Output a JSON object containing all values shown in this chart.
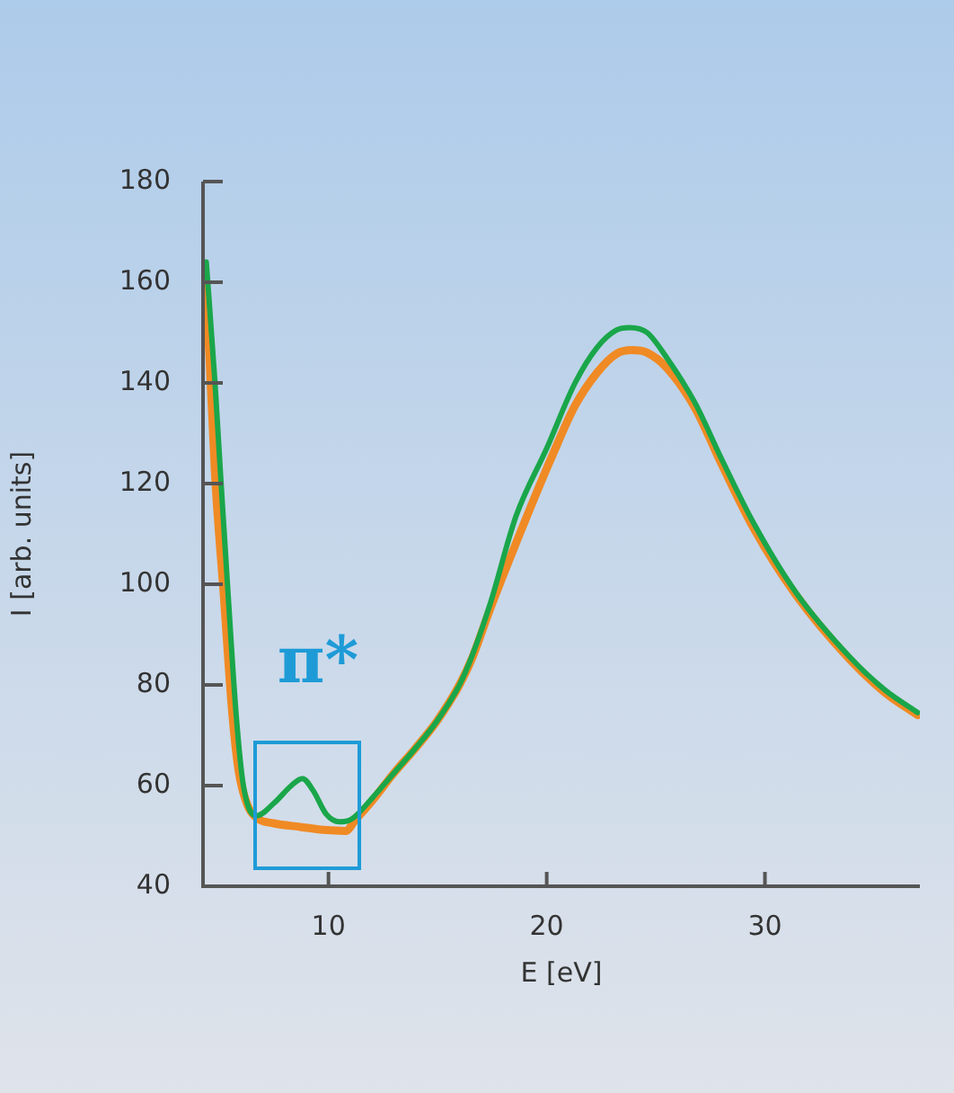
{
  "chart_data": {
    "type": "line",
    "xlabel": "E [eV]",
    "ylabel": "I [arb. units]",
    "xlim": [
      4.25,
      37.1
    ],
    "xticks": [
      10,
      20,
      30
    ],
    "ylim": [
      40,
      180
    ],
    "yticks": [
      40,
      60,
      80,
      100,
      120,
      140,
      160,
      180
    ],
    "grid": false,
    "legend": false,
    "annotations": [
      "π*"
    ],
    "series": [
      {
        "color": "#1aa64a",
        "x": [
          4.4,
          4.8,
          5.05,
          5.4,
          5.77,
          6.1,
          6.7,
          7.5,
          8.3,
          8.8,
          9.3,
          9.9,
          10.5,
          10.9,
          11.2,
          12,
          13,
          14,
          15,
          16,
          16.6,
          17.4,
          18.6,
          20,
          21.3,
          22.3,
          23.2,
          23.8,
          24.6,
          25.5,
          26.8,
          28,
          29.5,
          31.4,
          33.9,
          35.5,
          37
        ],
        "values": [
          164,
          140,
          122,
          98,
          74,
          60,
          54,
          56.5,
          60,
          61.4,
          59,
          54.3,
          52.8,
          53,
          53.8,
          57.5,
          62.5,
          67.5,
          73,
          80,
          86,
          96,
          113.6,
          127,
          140,
          147,
          150.5,
          151,
          150,
          145,
          136,
          125,
          112,
          98.5,
          85.5,
          79,
          74.5
        ]
      },
      {
        "color": "#f08a24",
        "x": [
          4.4,
          4.8,
          5.2,
          5.6,
          5.9,
          6.3,
          6.7,
          7.5,
          8.7,
          9.8,
          10.8,
          11.2,
          12,
          13,
          14,
          15,
          16,
          16.6,
          17.4,
          19.1,
          20.3,
          21.3,
          22.3,
          23.2,
          23.9,
          24.6,
          25.5,
          26.8,
          28,
          29.5,
          31.4,
          33.9,
          35.5,
          37
        ],
        "values": [
          159,
          122,
          98,
          74,
          62.5,
          56,
          53.6,
          52.5,
          51.8,
          51.2,
          51,
          53,
          57,
          62.5,
          67.5,
          73,
          80,
          85.5,
          95,
          113.6,
          126,
          135.5,
          142,
          145.8,
          146.5,
          146,
          143,
          135,
          124,
          111,
          98,
          85,
          78.5,
          74
        ]
      }
    ]
  }
}
